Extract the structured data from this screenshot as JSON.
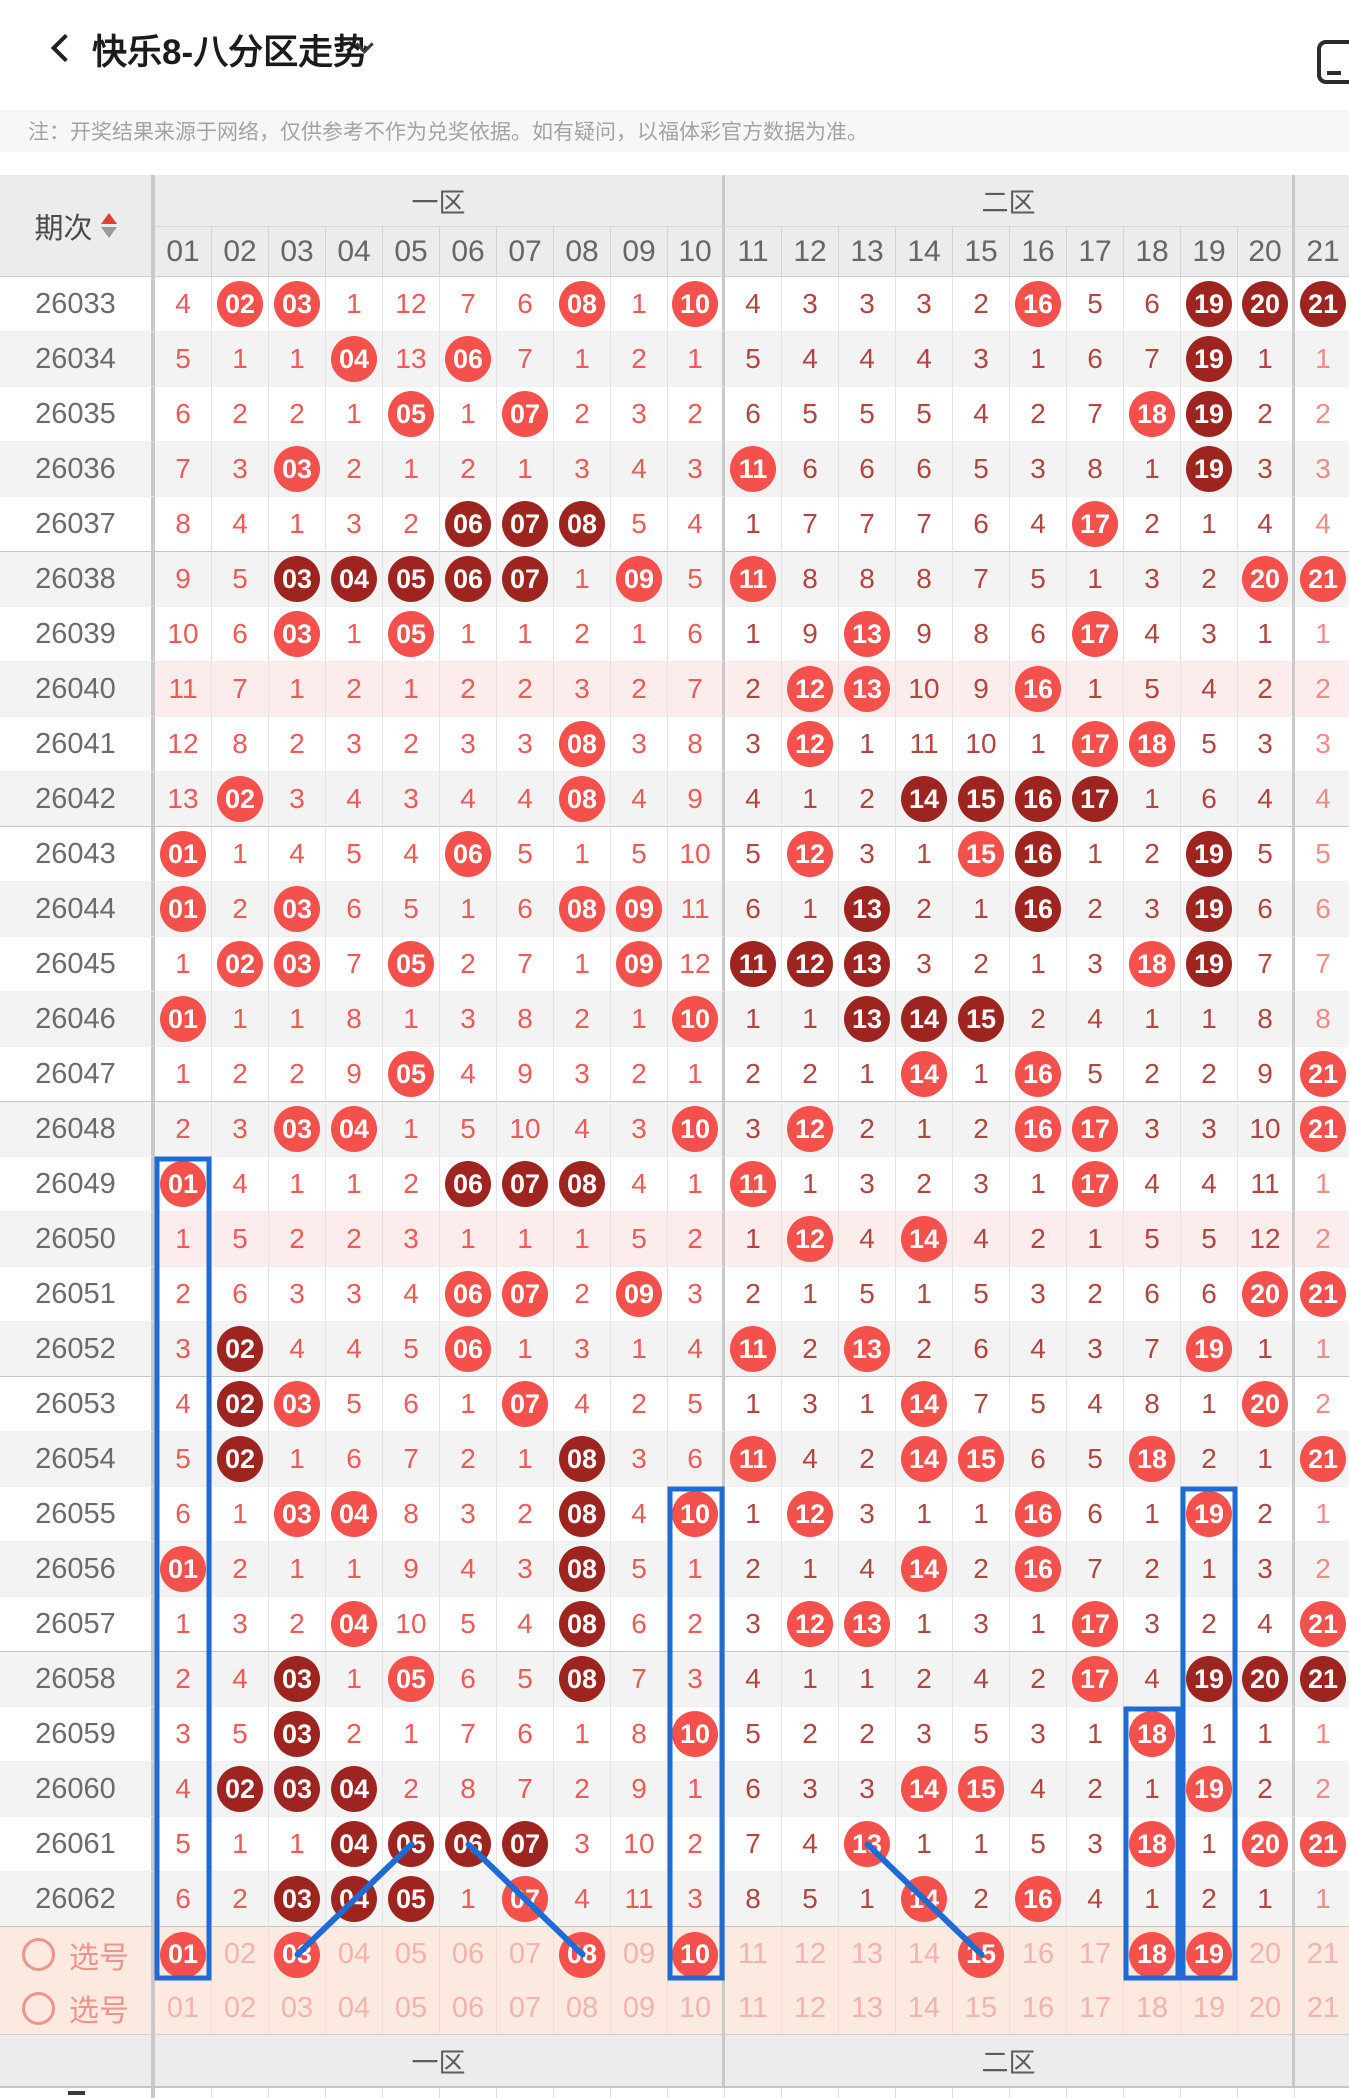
{
  "header": {
    "title": "快乐8-八分区走势",
    "back_icon": "chevron-left",
    "dropdown_icon": "chevron-down",
    "window_icon": "floating-window"
  },
  "notice": {
    "text": "注：开奖结果来源于网络，仅供参考不作为兑奖依据。如有疑问，以福体彩官方数据为准。"
  },
  "table": {
    "period_header": "期次",
    "sort_icon": "sort-asc-desc",
    "zones": [
      {
        "label": "一区",
        "cols": 10
      },
      {
        "label": "二区",
        "cols": 10
      },
      {
        "label": "",
        "cols": 1
      }
    ],
    "columns": [
      "01",
      "02",
      "03",
      "04",
      "05",
      "06",
      "07",
      "08",
      "09",
      "10",
      "11",
      "12",
      "13",
      "14",
      "15",
      "16",
      "17",
      "18",
      "19",
      "20",
      "21"
    ],
    "cell_legend": {
      "plain": "miss count",
      "c": "drawn number (red ball)",
      "d": "drawn number (dark-red ball)"
    },
    "group_rows": [
      4,
      9,
      14,
      19,
      24,
      29
    ],
    "rows": [
      {
        "period": "26033",
        "hl": false,
        "cells": "4,02c,03c,1,12,7,6,08c,1,10c,4,3,3,3,2,16c,5,6,19d,20d,21d"
      },
      {
        "period": "26034",
        "hl": false,
        "cells": "5,1,1,04c,13,06c,7,1,2,1,5,4,4,4,3,1,6,7,19d,1,1"
      },
      {
        "period": "26035",
        "hl": false,
        "cells": "6,2,2,1,05c,1,07c,2,3,2,6,5,5,5,4,2,7,18c,19d,2,2"
      },
      {
        "period": "26036",
        "hl": false,
        "cells": "7,3,03c,2,1,2,1,3,4,3,11c,6,6,6,5,3,8,1,19d,3,3"
      },
      {
        "period": "26037",
        "hl": false,
        "cells": "8,4,1,3,2,06d,07d,08d,5,4,1,7,7,7,6,4,17c,2,1,4,4"
      },
      {
        "period": "26038",
        "hl": false,
        "cells": "9,5,03d,04d,05d,06d,07d,1,09c,5,11c,8,8,8,7,5,1,3,2,20c,21c"
      },
      {
        "period": "26039",
        "hl": false,
        "cells": "10,6,03c,1,05c,1,1,2,1,6,1,9,13c,9,8,6,17c,4,3,1,1"
      },
      {
        "period": "26040",
        "hl": true,
        "cells": "11,7,1,2,1,2,2,3,2,7,2,12c,13c,10,9,16c,1,5,4,2,2"
      },
      {
        "period": "26041",
        "hl": false,
        "cells": "12,8,2,3,2,3,3,08c,3,8,3,12c,1,11,10,1,17c,18c,5,3,3"
      },
      {
        "period": "26042",
        "hl": false,
        "cells": "13,02c,3,4,3,4,4,08c,4,9,4,1,2,14d,15d,16d,17d,1,6,4,4"
      },
      {
        "period": "26043",
        "hl": false,
        "cells": "01c,1,4,5,4,06c,5,1,5,10,5,12c,3,1,15c,16d,1,2,19d,5,5"
      },
      {
        "period": "26044",
        "hl": false,
        "cells": "01c,2,03c,6,5,1,6,08c,09c,11,6,1,13d,2,1,16d,2,3,19d,6,6"
      },
      {
        "period": "26045",
        "hl": false,
        "cells": "1,02c,03c,7,05c,2,7,1,09c,12,11d,12d,13d,3,2,1,3,18c,19d,7,7"
      },
      {
        "period": "26046",
        "hl": false,
        "cells": "01c,1,1,8,1,3,8,2,1,10c,1,1,13d,14d,15d,2,4,1,1,8,8"
      },
      {
        "period": "26047",
        "hl": false,
        "cells": "1,2,2,9,05c,4,9,3,2,1,2,2,1,14c,1,16c,5,2,2,9,21c"
      },
      {
        "period": "26048",
        "hl": false,
        "cells": "2,3,03c,04c,1,5,10,4,3,10c,3,12c,2,1,2,16c,17c,3,3,10,21c"
      },
      {
        "period": "26049",
        "hl": false,
        "cells": "01c,4,1,1,2,06d,07d,08d,4,1,11c,1,3,2,3,1,17c,4,4,11,1"
      },
      {
        "period": "26050",
        "hl": true,
        "cells": "1,5,2,2,3,1,1,1,5,2,1,12c,4,14c,4,2,1,5,5,12,2"
      },
      {
        "period": "26051",
        "hl": false,
        "cells": "2,6,3,3,4,06c,07c,2,09c,3,2,1,5,1,5,3,2,6,6,20c,21c"
      },
      {
        "period": "26052",
        "hl": false,
        "cells": "3,02d,4,4,5,06c,1,3,1,4,11c,2,13c,2,6,4,3,7,19c,1,1"
      },
      {
        "period": "26053",
        "hl": false,
        "cells": "4,02d,03c,5,6,1,07c,4,2,5,1,3,1,14c,7,5,4,8,1,20c,2"
      },
      {
        "period": "26054",
        "hl": false,
        "cells": "5,02d,1,6,7,2,1,08d,3,6,11c,4,2,14c,15c,6,5,18c,2,1,21c"
      },
      {
        "period": "26055",
        "hl": false,
        "cells": "6,1,03c,04c,8,3,2,08d,4,10c,1,12c,3,1,1,16c,6,1,19c,2,1"
      },
      {
        "period": "26056",
        "hl": false,
        "cells": "01c,2,1,1,9,4,3,08d,5,1,2,1,4,14c,2,16c,7,2,1,3,2"
      },
      {
        "period": "26057",
        "hl": false,
        "cells": "1,3,2,04c,10,5,4,08d,6,2,3,12c,13c,1,3,1,17c,3,2,4,21c"
      },
      {
        "period": "26058",
        "hl": false,
        "cells": "2,4,03d,1,05c,6,5,08d,7,3,4,1,1,2,4,2,17c,4,19d,20d,21d"
      },
      {
        "period": "26059",
        "hl": false,
        "cells": "3,5,03d,2,1,7,6,1,8,10c,5,2,2,3,5,3,1,18c,1,1,1"
      },
      {
        "period": "26060",
        "hl": false,
        "cells": "4,02d,03d,04d,2,8,7,2,9,1,6,3,3,14c,15c,4,2,1,19c,2,2"
      },
      {
        "period": "26061",
        "hl": false,
        "cells": "5,1,1,04d,05d,06d,07d,3,10,2,7,4,13c,1,1,5,3,18c,1,20c,21c"
      },
      {
        "period": "26062",
        "hl": false,
        "cells": "6,2,03d,04d,05d,1,07c,4,11,3,8,5,1,14c,2,16c,4,1,2,1,1"
      }
    ],
    "pick_rows": [
      {
        "label": "选号",
        "cells": "01c,02,03c,04,05,06,07,08c,09,10c,11,12,13,14,15c,16,17,18c,19c,20,21"
      },
      {
        "label": "选号",
        "cells": "01,02,03,04,05,06,07,08,09,10,11,12,13,14,15,16,17,18,19,20,21"
      }
    ],
    "footer_zones": [
      "一区",
      "二区"
    ]
  },
  "overlays": {
    "rects": [
      {
        "col": 1,
        "from_row": 16
      },
      {
        "col": 10,
        "from_row": 22
      },
      {
        "col": 19,
        "from_row": 22
      },
      {
        "col": 18,
        "from_row": 26
      }
    ],
    "lines": [
      {
        "from": {
          "row": 28,
          "col": 5
        },
        "to": {
          "pick": 0,
          "col": 3
        }
      },
      {
        "from": {
          "row": 28,
          "col": 6
        },
        "to": {
          "pick": 0,
          "col": 8
        }
      },
      {
        "from": {
          "row": 28,
          "col": 13
        },
        "to": {
          "pick": 0,
          "col": 15
        }
      }
    ]
  },
  "colors": {
    "ball_red": "#f4504c",
    "ball_dark": "#9e2420",
    "zone1_text": "#ee5a56",
    "zone2_text": "#b2453f",
    "zone3_text": "#f28b84",
    "highlight_row": "#fdecec",
    "pick_bg": "#fce9e0",
    "pick_dim": "#f5b2aa",
    "overlay_blue": "#1d6bd3",
    "sort_up": "#e23d38",
    "sort_down": "#9a9a9a"
  }
}
